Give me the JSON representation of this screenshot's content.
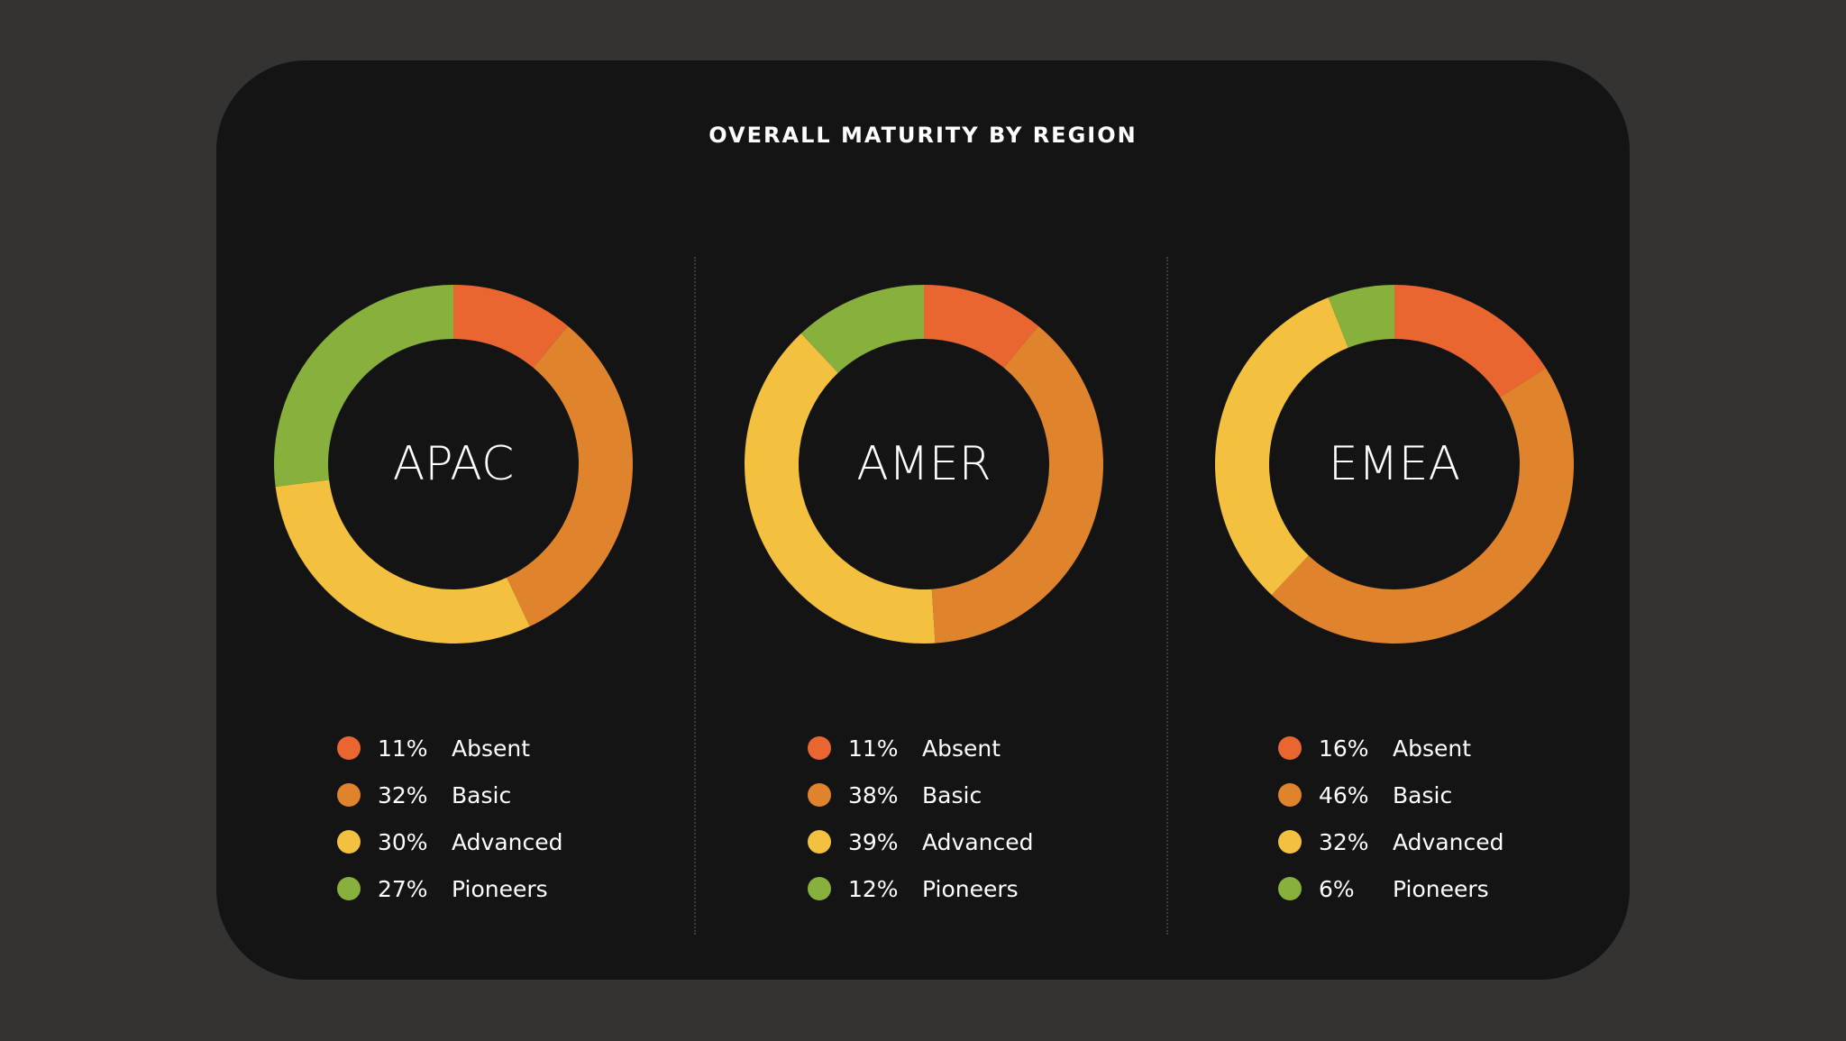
{
  "colors": {
    "background": "#343332",
    "card": "#141414",
    "absent": "#ea6631",
    "basic": "#df842d",
    "advanced": "#f3c03f",
    "pioneers": "#87b03c"
  },
  "chart_data": {
    "type": "pie",
    "title": "OVERALL MATURITY BY REGION",
    "categories": [
      "Absent",
      "Basic",
      "Advanced",
      "Pioneers"
    ],
    "charts": [
      {
        "name": "APAC",
        "items": [
          {
            "label": "Absent",
            "value": 11,
            "pct": "11%",
            "color": "#ea6631"
          },
          {
            "label": "Basic",
            "value": 32,
            "pct": "32%",
            "color": "#df842d"
          },
          {
            "label": "Advanced",
            "value": 30,
            "pct": "30%",
            "color": "#f3c03f"
          },
          {
            "label": "Pioneers",
            "value": 27,
            "pct": "27%",
            "color": "#87b03c"
          }
        ]
      },
      {
        "name": "AMER",
        "items": [
          {
            "label": "Absent",
            "value": 11,
            "pct": "11%",
            "color": "#ea6631"
          },
          {
            "label": "Basic",
            "value": 38,
            "pct": "38%",
            "color": "#df842d"
          },
          {
            "label": "Advanced",
            "value": 39,
            "pct": "39%",
            "color": "#f3c03f"
          },
          {
            "label": "Pioneers",
            "value": 12,
            "pct": "12%",
            "color": "#87b03c"
          }
        ]
      },
      {
        "name": "EMEA",
        "items": [
          {
            "label": "Absent",
            "value": 16,
            "pct": "16%",
            "color": "#ea6631"
          },
          {
            "label": "Basic",
            "value": 46,
            "pct": "46%",
            "color": "#df842d"
          },
          {
            "label": "Advanced",
            "value": 32,
            "pct": "32%",
            "color": "#f3c03f"
          },
          {
            "label": "Pioneers",
            "value": 6,
            "pct": "6%",
            "color": "#87b03c"
          }
        ]
      }
    ]
  }
}
